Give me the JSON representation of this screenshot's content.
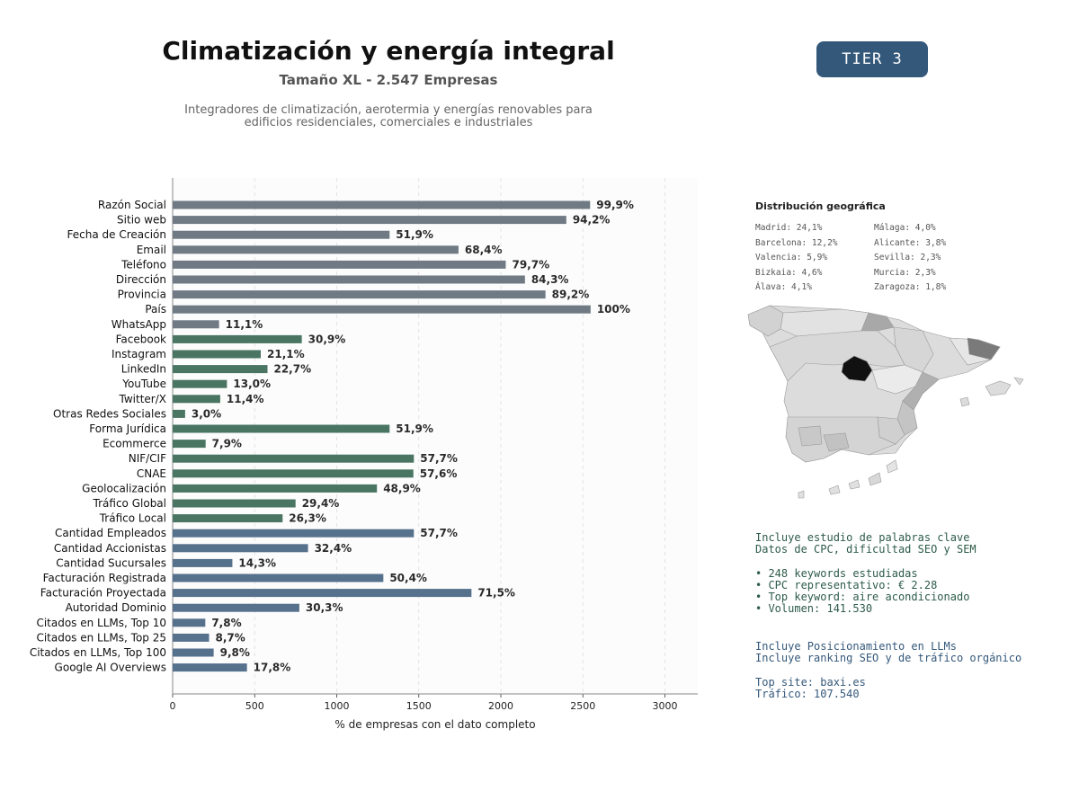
{
  "header": {
    "title": "Climatización y energía integral",
    "subtitle": "Tamaño XL - 2.547 Empresas",
    "description_line1": "Integradores de climatización, aerotermia y energías renovables para",
    "description_line2": "edificios residenciales, comerciales e industriales",
    "tier_badge": "TIER 3"
  },
  "colors": {
    "gray": "#6f7a84",
    "green": "#4a7563",
    "blue": "#56718c",
    "badge": "#34587a"
  },
  "chart_data": {
    "type": "bar",
    "orientation": "horizontal",
    "xlabel": "% de empresas con el dato completo",
    "xlim": [
      0,
      3200
    ],
    "xticks": [
      0,
      500,
      1000,
      1500,
      2000,
      2500,
      3000
    ],
    "grid": "vertical dashed",
    "categories": [
      "Razón Social",
      "Sitio web",
      "Fecha de Creación",
      "Email",
      "Teléfono",
      "Dirección",
      "Provincia",
      "País",
      "WhatsApp",
      "Facebook",
      "Instagram",
      "LinkedIn",
      "YouTube",
      "Twitter/X",
      "Otras Redes Sociales",
      "Forma Jurídica",
      "Ecommerce",
      "NIF/CIF",
      "CNAE",
      "Geolocalización",
      "Tráfico Global",
      "Tráfico Local",
      "Cantidad Empleados",
      "Cantidad Accionistas",
      "Cantidad Sucursales",
      "Facturación Registrada",
      "Facturación Proyectada",
      "Autoridad Dominio",
      "Citados en LLMs, Top 10",
      "Citados en LLMs, Top 25",
      "Citados en LLMs, Top 100",
      "Google AI Overviews"
    ],
    "values": [
      2544,
      2399,
      1322,
      1742,
      2030,
      2147,
      2272,
      2547,
      283,
      787,
      537,
      578,
      331,
      290,
      76,
      1322,
      201,
      1470,
      1467,
      1245,
      749,
      670,
      1470,
      825,
      364,
      1284,
      1821,
      772,
      199,
      222,
      250,
      453
    ],
    "labels": [
      "99,9%",
      "94,2%",
      "51,9%",
      "68,4%",
      "79,7%",
      "84,3%",
      "89,2%",
      "100%",
      "11,1%",
      "30,9%",
      "21,1%",
      "22,7%",
      "13,0%",
      "11,4%",
      "3,0%",
      "51,9%",
      "7,9%",
      "57,7%",
      "57,6%",
      "48,9%",
      "29,4%",
      "26,3%",
      "57,7%",
      "32,4%",
      "14,3%",
      "50,4%",
      "71,5%",
      "30,3%",
      "7,8%",
      "8,7%",
      "9,8%",
      "17,8%"
    ],
    "groups": [
      "gray",
      "gray",
      "gray",
      "gray",
      "gray",
      "gray",
      "gray",
      "gray",
      "gray",
      "green",
      "green",
      "green",
      "green",
      "green",
      "green",
      "green",
      "green",
      "green",
      "green",
      "green",
      "green",
      "green",
      "blue",
      "blue",
      "blue",
      "blue",
      "blue",
      "blue",
      "blue",
      "blue",
      "blue",
      "blue"
    ]
  },
  "geo": {
    "title": "Distribución geográfica",
    "left": [
      "Madrid: 24,1%",
      "Barcelona: 12,2%",
      "Valencia: 5,9%",
      "Bizkaia: 4,6%",
      "Álava: 4,1%"
    ],
    "right": [
      "Málaga: 4,0%",
      "Alicante: 3,8%",
      "Sevilla: 2,3%",
      "Murcia: 2,3%",
      "Zaragoza: 1,8%"
    ]
  },
  "keywords": {
    "line1": "Incluye estudio de palabras clave",
    "line2": "Datos de CPC, dificultad SEO y SEM",
    "bullets": [
      "• 248 keywords estudiadas",
      "• CPC representativo: € 2.28",
      "• Top keyword: aire acondicionado",
      "• Volumen: 141.530"
    ]
  },
  "llm": {
    "line1": "Incluye Posicionamiento en LLMs",
    "line2": "Incluye ranking SEO y de tráfico orgánico",
    "top_site": "Top site: baxi.es",
    "traffic": "Tráfico: 107.540"
  }
}
